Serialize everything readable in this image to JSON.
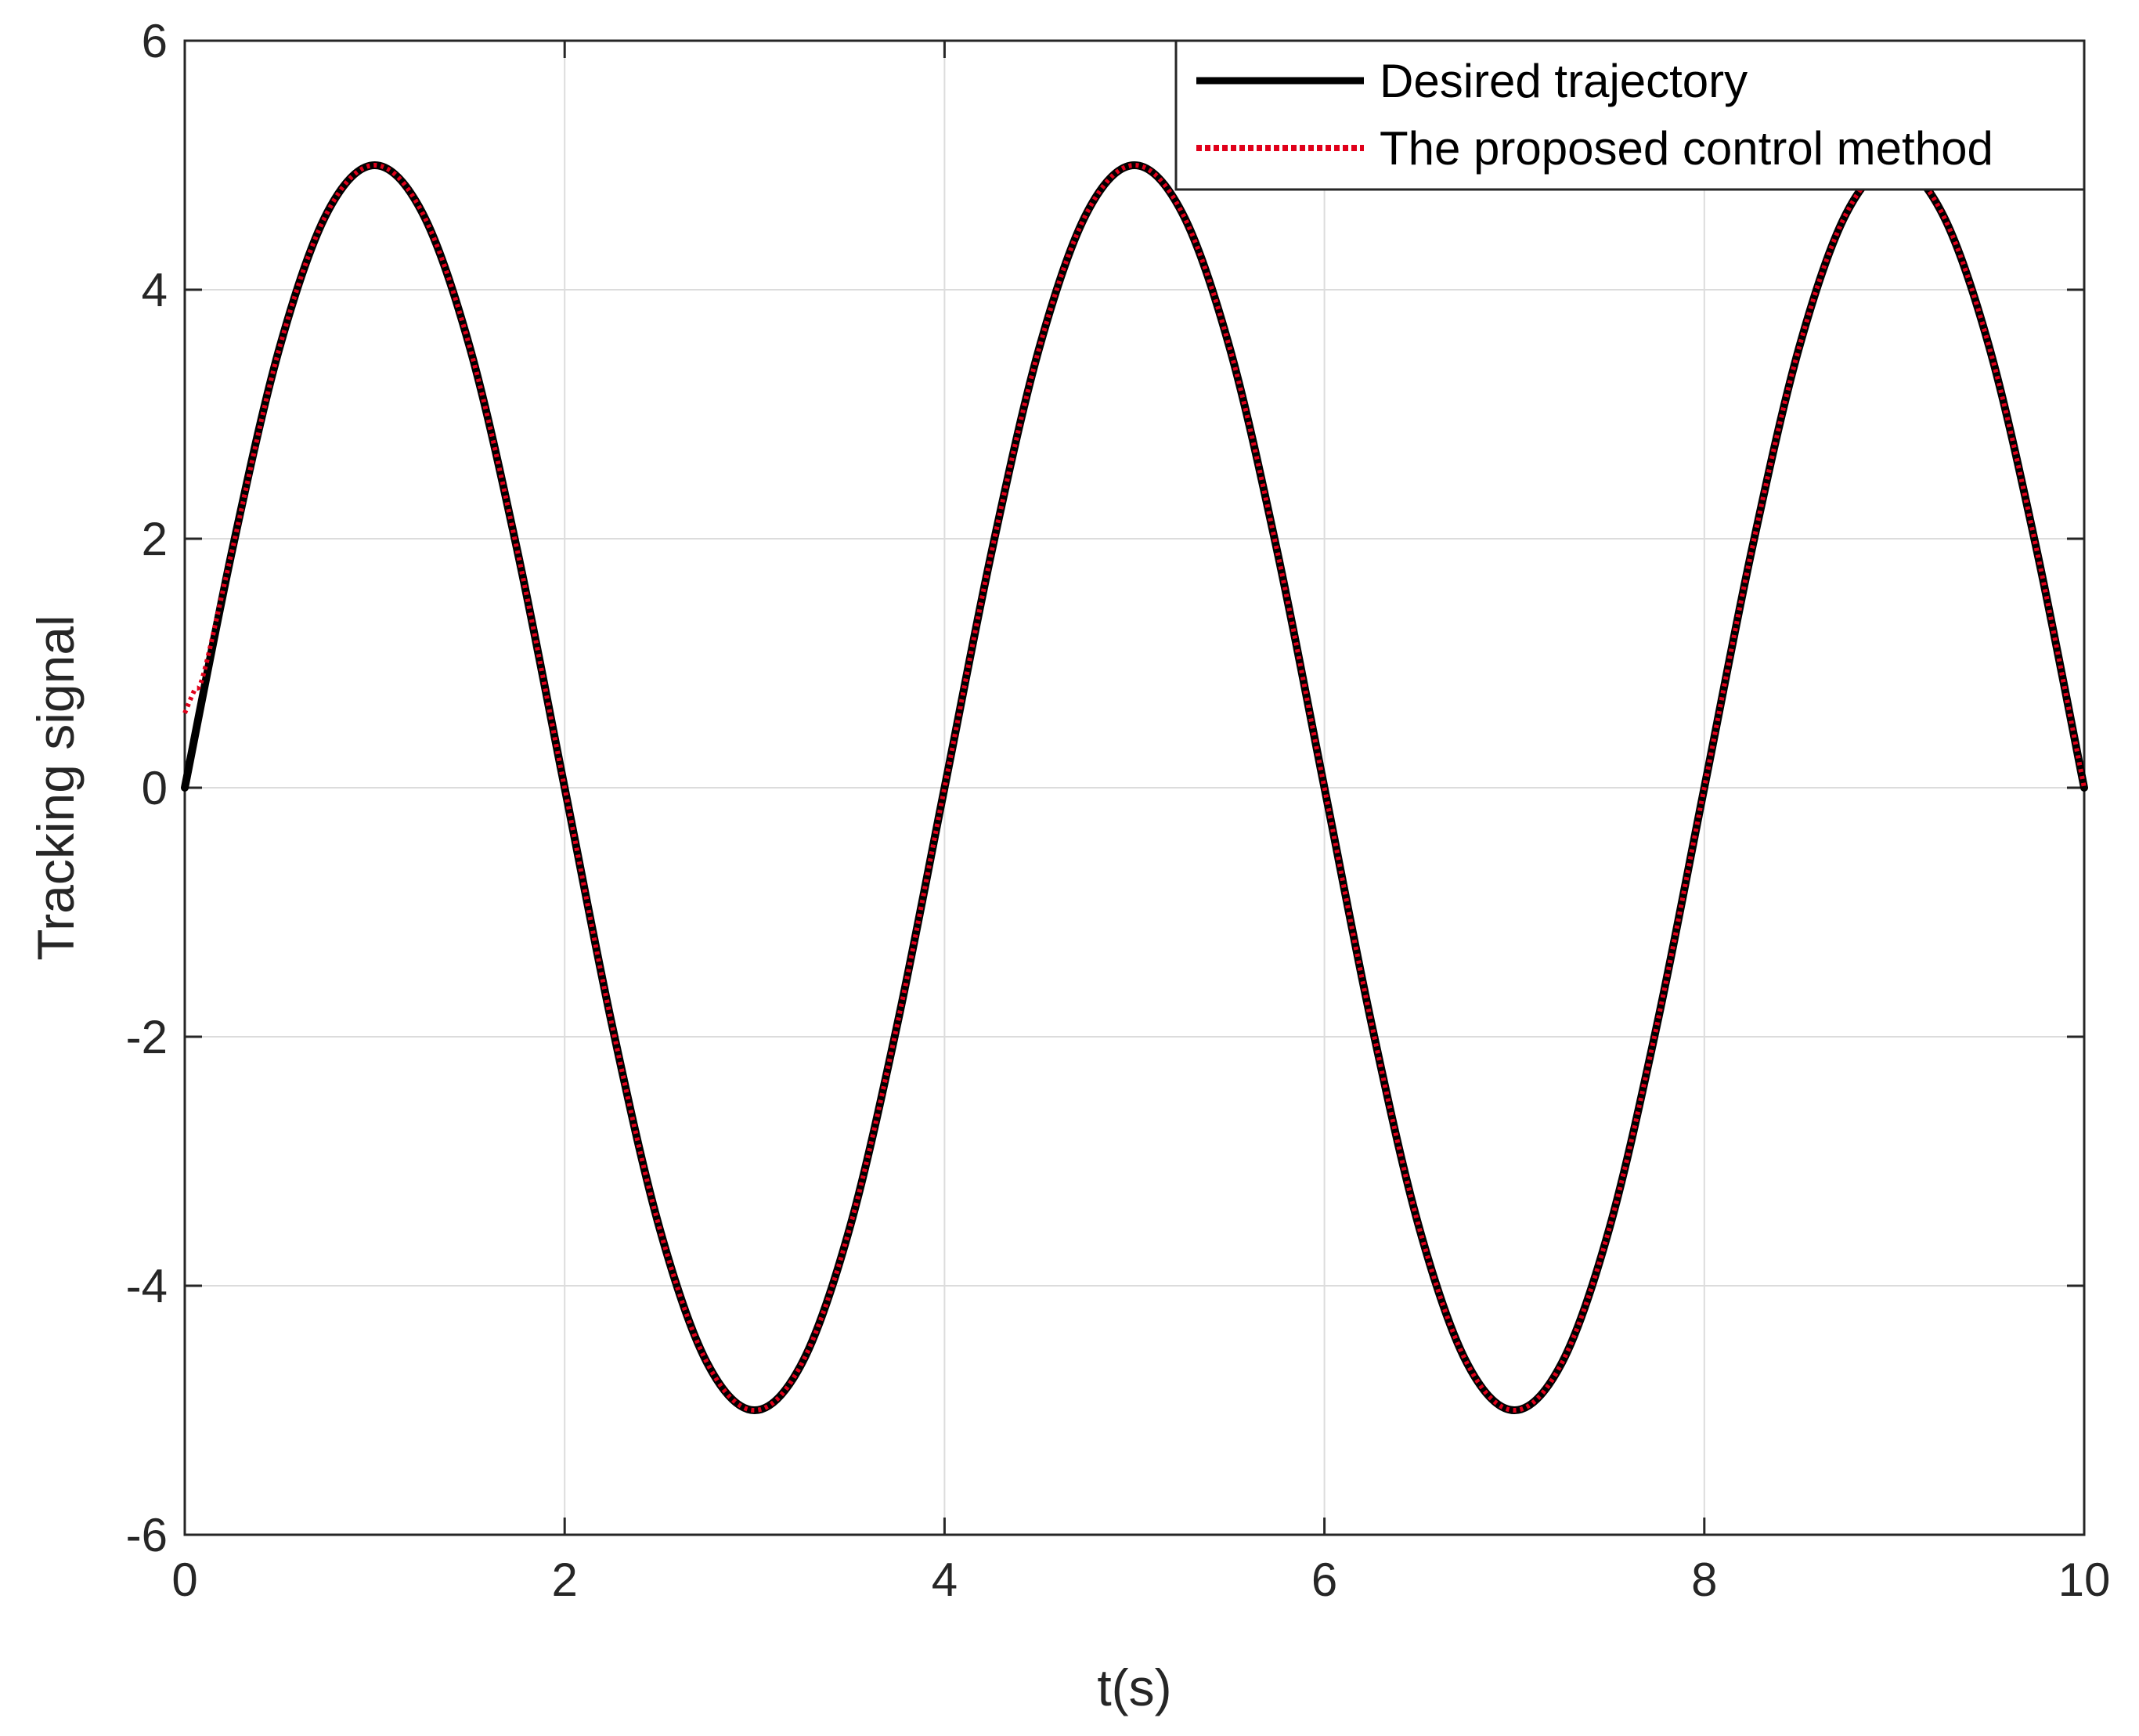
{
  "chart_data": {
    "type": "line",
    "title": "",
    "xlabel": "t(s)",
    "ylabel": "Tracking signal",
    "xlim": [
      0,
      10
    ],
    "ylim": [
      -6,
      6
    ],
    "xticks": [
      0,
      2,
      4,
      6,
      8,
      10
    ],
    "yticks": [
      -6,
      -4,
      -2,
      0,
      2,
      4,
      6
    ],
    "xtick_labels": [
      "0",
      "2",
      "4",
      "6",
      "8",
      "10"
    ],
    "ytick_labels": [
      "-6",
      "-4",
      "-2",
      "0",
      "2",
      "4",
      "6"
    ],
    "grid": true,
    "legend_position": "top-right",
    "series": [
      {
        "name": "Desired trajectory",
        "color": "#000000",
        "style": "solid",
        "x": [
          0,
          0.25,
          0.5,
          0.75,
          1,
          1.25,
          1.5,
          1.75,
          2,
          2.25,
          2.5,
          2.75,
          3,
          3.25,
          3.5,
          3.75,
          4,
          4.25,
          4.5,
          4.75,
          5,
          5.25,
          5.5,
          5.75,
          6,
          6.25,
          6.5,
          6.75,
          7,
          7.25,
          7.5,
          7.75,
          8,
          8.25,
          8.5,
          8.75,
          9,
          9.25,
          9.5,
          9.75,
          10
        ],
        "y": [
          0,
          1.91,
          3.54,
          4.62,
          5,
          4.62,
          3.54,
          1.91,
          0,
          -1.91,
          -3.54,
          -4.62,
          -5,
          -4.62,
          -3.54,
          -1.91,
          0,
          1.91,
          3.54,
          4.62,
          5,
          4.62,
          3.54,
          1.91,
          0,
          -1.91,
          -3.54,
          -4.62,
          -5,
          -4.62,
          -3.54,
          -1.91,
          0,
          1.91,
          3.54,
          4.62,
          5,
          4.62,
          3.54,
          1.91,
          0
        ]
      },
      {
        "name": "The proposed control method",
        "color": "#e0001a",
        "style": "dotted",
        "x": [
          0,
          0.05,
          0.1,
          0.25,
          0.5,
          0.75,
          1,
          1.25,
          1.5,
          1.75,
          2,
          2.25,
          2.5,
          2.75,
          3,
          3.25,
          3.5,
          3.75,
          4,
          4.25,
          4.5,
          4.75,
          5,
          5.25,
          5.5,
          5.75,
          6,
          6.25,
          6.5,
          6.75,
          7,
          7.25,
          7.5,
          7.75,
          8,
          8.25,
          8.5,
          8.75,
          9,
          9.25,
          9.5,
          9.75,
          10
        ],
        "y": [
          0.6,
          0.78,
          0.92,
          1.91,
          3.54,
          4.62,
          5,
          4.62,
          3.54,
          1.91,
          0,
          -1.91,
          -3.54,
          -4.62,
          -5,
          -4.62,
          -3.54,
          -1.91,
          0,
          1.91,
          3.54,
          4.62,
          5,
          4.62,
          3.54,
          1.91,
          0,
          -1.91,
          -3.54,
          -4.62,
          -5,
          -4.62,
          -3.54,
          -1.91,
          0,
          1.91,
          3.54,
          4.62,
          5,
          4.62,
          3.54,
          1.91,
          0
        ]
      }
    ]
  }
}
